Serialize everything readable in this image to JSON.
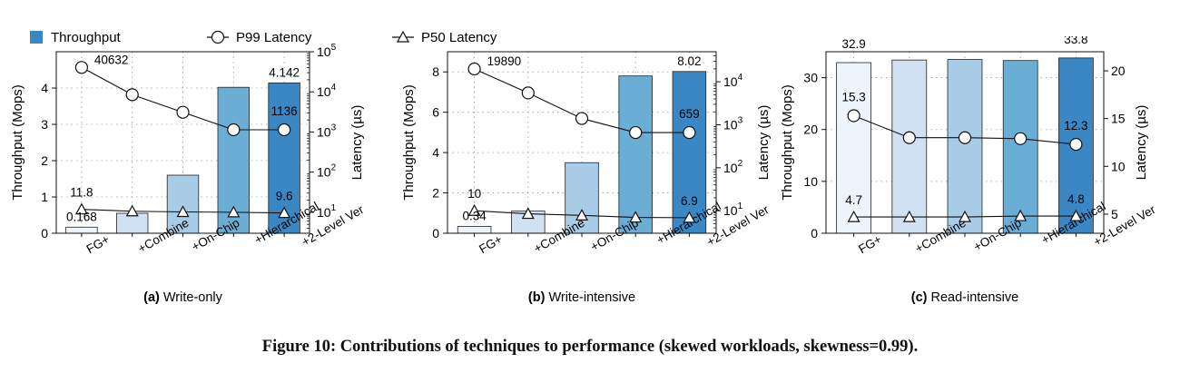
{
  "legend": {
    "throughput": "Throughput",
    "p99": "P99 Latency",
    "p50": "P50 Latency"
  },
  "caption": "Figure 10: Contributions of techniques to performance (skewed workloads, skewness=0.99).",
  "colors": {
    "bars": [
      "#eef4fb",
      "#cfe1f2",
      "#a8cbe6",
      "#6aaed6",
      "#3a87c4"
    ],
    "legend_bar": "#3a87c4",
    "grid": "#999999"
  },
  "chart_data": [
    {
      "type": "bar",
      "panel_label": "(a)",
      "panel_title": "Write-only",
      "categories": [
        "FG+",
        "+Combine",
        "+On-Chip",
        "+Hierarchical",
        "+2-Level Ver"
      ],
      "ylabel": "Throughput (Mops)",
      "y2label": "Latency (µs)",
      "ylim": [
        0,
        5
      ],
      "yticks": [
        0,
        1,
        2,
        3,
        4
      ],
      "y2scale": "log",
      "y2lim": [
        3,
        100000
      ],
      "y2ticks": [
        {
          "v": 10,
          "base": "10",
          "exp": "1"
        },
        {
          "v": 100,
          "base": "10",
          "exp": "2"
        },
        {
          "v": 1000,
          "base": "10",
          "exp": "3"
        },
        {
          "v": 10000,
          "base": "10",
          "exp": "4"
        },
        {
          "v": 100000,
          "base": "10",
          "exp": "5"
        }
      ],
      "series": [
        {
          "name": "Throughput",
          "values": [
            0.168,
            0.55,
            1.6,
            4.02,
            4.142
          ]
        },
        {
          "name": "P99 Latency",
          "values": [
            40632,
            8500,
            3100,
            1136,
            1136
          ]
        },
        {
          "name": "P50 Latency",
          "values": [
            11.8,
            10.6,
            10.2,
            10.0,
            9.6
          ]
        }
      ],
      "annotations": [
        {
          "series": 0,
          "index": 0,
          "text": "0.168"
        },
        {
          "series": 0,
          "index": 4,
          "text": "4.142"
        },
        {
          "series": 1,
          "index": 0,
          "text": "40632"
        },
        {
          "series": 1,
          "index": 4,
          "text": "1136"
        },
        {
          "series": 2,
          "index": 0,
          "text": "11.8"
        },
        {
          "series": 2,
          "index": 4,
          "text": "9.6"
        }
      ]
    },
    {
      "type": "bar",
      "panel_label": "(b)",
      "panel_title": "Write-intensive",
      "categories": [
        "FG+",
        "+Combine",
        "+On-Chip",
        "+Hierarchical",
        "+2-Level Ver"
      ],
      "ylabel": "Throughput (Mops)",
      "y2label": "Latency (µs)",
      "ylim": [
        0,
        9
      ],
      "yticks": [
        0,
        2,
        4,
        6,
        8
      ],
      "y2scale": "log",
      "y2lim": [
        3,
        50000
      ],
      "y2ticks": [
        {
          "v": 10,
          "base": "10",
          "exp": "1"
        },
        {
          "v": 100,
          "base": "10",
          "exp": "2"
        },
        {
          "v": 1000,
          "base": "10",
          "exp": "3"
        },
        {
          "v": 10000,
          "base": "10",
          "exp": "4"
        }
      ],
      "series": [
        {
          "name": "Throughput",
          "values": [
            0.34,
            1.1,
            3.5,
            7.8,
            8.02
          ]
        },
        {
          "name": "P99 Latency",
          "values": [
            19890,
            5500,
            1400,
            659,
            659
          ]
        },
        {
          "name": "P50 Latency",
          "values": [
            10,
            8.5,
            7.8,
            7.0,
            6.9
          ]
        }
      ],
      "annotations": [
        {
          "series": 0,
          "index": 0,
          "text": "0.34"
        },
        {
          "series": 0,
          "index": 4,
          "text": "8.02"
        },
        {
          "series": 1,
          "index": 0,
          "text": "19890"
        },
        {
          "series": 1,
          "index": 4,
          "text": "659"
        },
        {
          "series": 2,
          "index": 0,
          "text": "10"
        },
        {
          "series": 2,
          "index": 4,
          "text": "6.9"
        }
      ]
    },
    {
      "type": "bar",
      "panel_label": "(c)",
      "panel_title": "Read-intensive",
      "categories": [
        "FG+",
        "+Combine",
        "+On-Chip",
        "+Hierarchical",
        "+2-Level Ver"
      ],
      "ylabel": "Throughput (Mops)",
      "y2label": "Latency (µs)",
      "ylim": [
        0,
        35
      ],
      "yticks": [
        0,
        10,
        20,
        30
      ],
      "y2scale": "linear",
      "y2lim": [
        3,
        22
      ],
      "y2ticks": [
        {
          "v": 5,
          "base": "5"
        },
        {
          "v": 10,
          "base": "10"
        },
        {
          "v": 15,
          "base": "15"
        },
        {
          "v": 20,
          "base": "20"
        }
      ],
      "series": [
        {
          "name": "Throughput",
          "values": [
            32.9,
            33.4,
            33.5,
            33.3,
            33.8
          ]
        },
        {
          "name": "P99 Latency",
          "values": [
            15.3,
            13.0,
            13.0,
            12.9,
            12.3
          ]
        },
        {
          "name": "P50 Latency",
          "values": [
            4.7,
            4.7,
            4.7,
            4.8,
            4.8
          ]
        }
      ],
      "annotations": [
        {
          "series": 0,
          "index": 0,
          "text": "32.9"
        },
        {
          "series": 0,
          "index": 4,
          "text": "33.8"
        },
        {
          "series": 1,
          "index": 0,
          "text": "15.3"
        },
        {
          "series": 1,
          "index": 4,
          "text": "12.3"
        },
        {
          "series": 2,
          "index": 0,
          "text": "4.7"
        },
        {
          "series": 2,
          "index": 4,
          "text": "4.8"
        }
      ]
    }
  ]
}
